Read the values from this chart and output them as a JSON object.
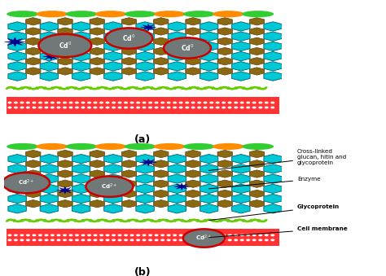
{
  "fig_width": 4.74,
  "fig_height": 3.39,
  "dpi": 100,
  "bg_color": "#ffffff",
  "green_ellipse": "#32cd32",
  "orange_ellipse": "#ff8c00",
  "cyan_hex": "#00c8d4",
  "brown_hex": "#8b6914",
  "nano_fill": "#707878",
  "nano_border": "#cc0000",
  "star_color": "#00008b",
  "glyco_color": "#66cc00",
  "membrane_red": "#ff3333",
  "membrane_white": "#ffffff",
  "panel_a_label": "(a)",
  "panel_b_label": "(b)",
  "annot_texts": [
    "Cross-linked\nglucan, hitin and\nglycoprotein",
    "Enzyme",
    "Glycoprotein",
    "Cell membrane"
  ],
  "annot_fontsize": 5.5
}
